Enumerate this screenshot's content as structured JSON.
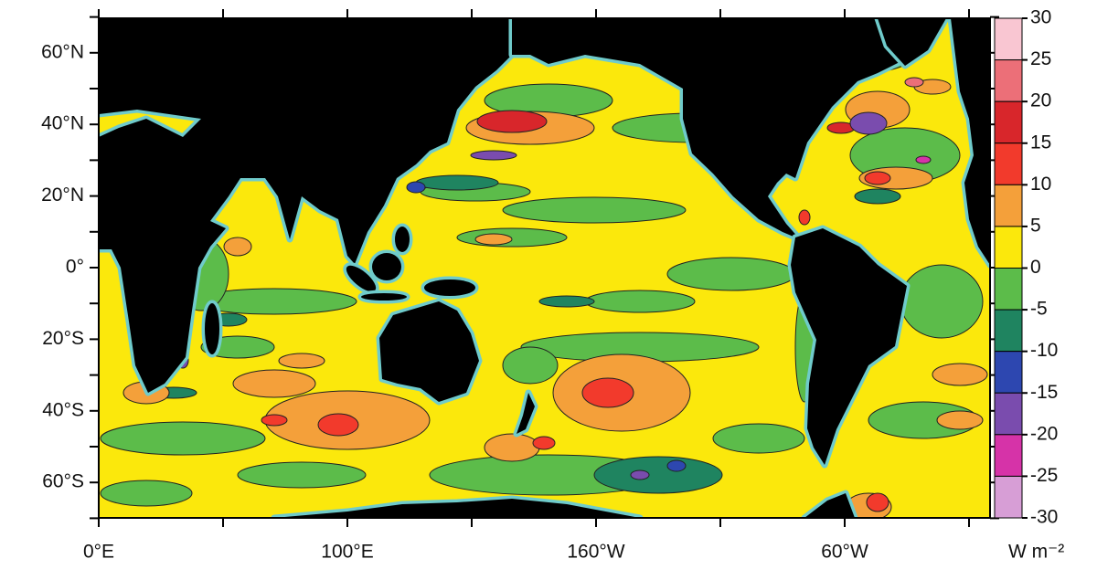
{
  "map": {
    "lat_labels": [
      "60°N",
      "40°N",
      "20°N",
      "0°",
      "20°S",
      "40°S",
      "60°S"
    ],
    "lon_labels": [
      "0°E",
      "100°E",
      "160°W",
      "60°W"
    ],
    "colorbar": {
      "levels": [
        30,
        25,
        20,
        15,
        10,
        5,
        0,
        -5,
        -10,
        -15,
        -20,
        -25,
        -30
      ],
      "colors": [
        "#f9c6d2",
        "#ec6f78",
        "#d8262b",
        "#f23a2c",
        "#f4a03a",
        "#fbe80c",
        "#5cbc4a",
        "#1f8460",
        "#2d47b0",
        "#7a4cae",
        "#d633a8",
        "#d79ed6"
      ],
      "unit": "W m⁻²"
    }
  }
}
